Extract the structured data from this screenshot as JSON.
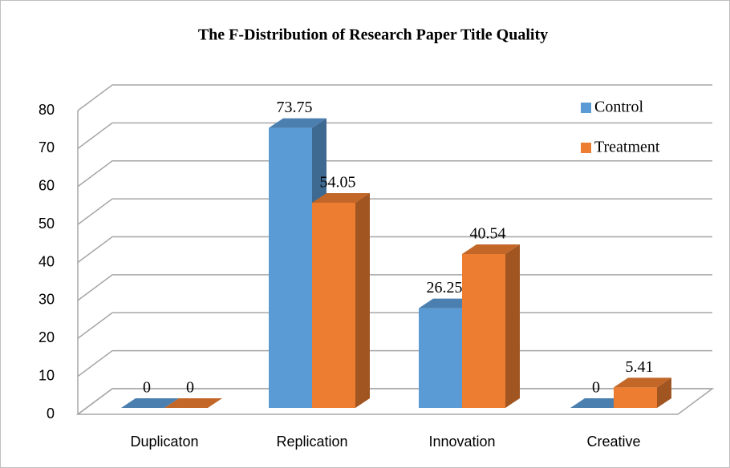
{
  "chart_data": {
    "type": "bar3d",
    "title": "The F-Distribution  of Research Paper Title Quality",
    "categories": [
      "Duplicaton",
      "Replication",
      "Innovation",
      "Creative"
    ],
    "series": [
      {
        "name": "Control",
        "color": "#5b9bd5",
        "values": [
          0,
          73.75,
          26.25,
          0
        ]
      },
      {
        "name": "Treatment",
        "color": "#ed7d31",
        "values": [
          0,
          54.05,
          40.54,
          5.41
        ]
      }
    ],
    "ylim": [
      0,
      80
    ],
    "yticks": [
      0,
      10,
      20,
      30,
      40,
      50,
      60,
      70,
      80
    ],
    "grid": true,
    "legend": "top-right",
    "data_labels": true
  }
}
